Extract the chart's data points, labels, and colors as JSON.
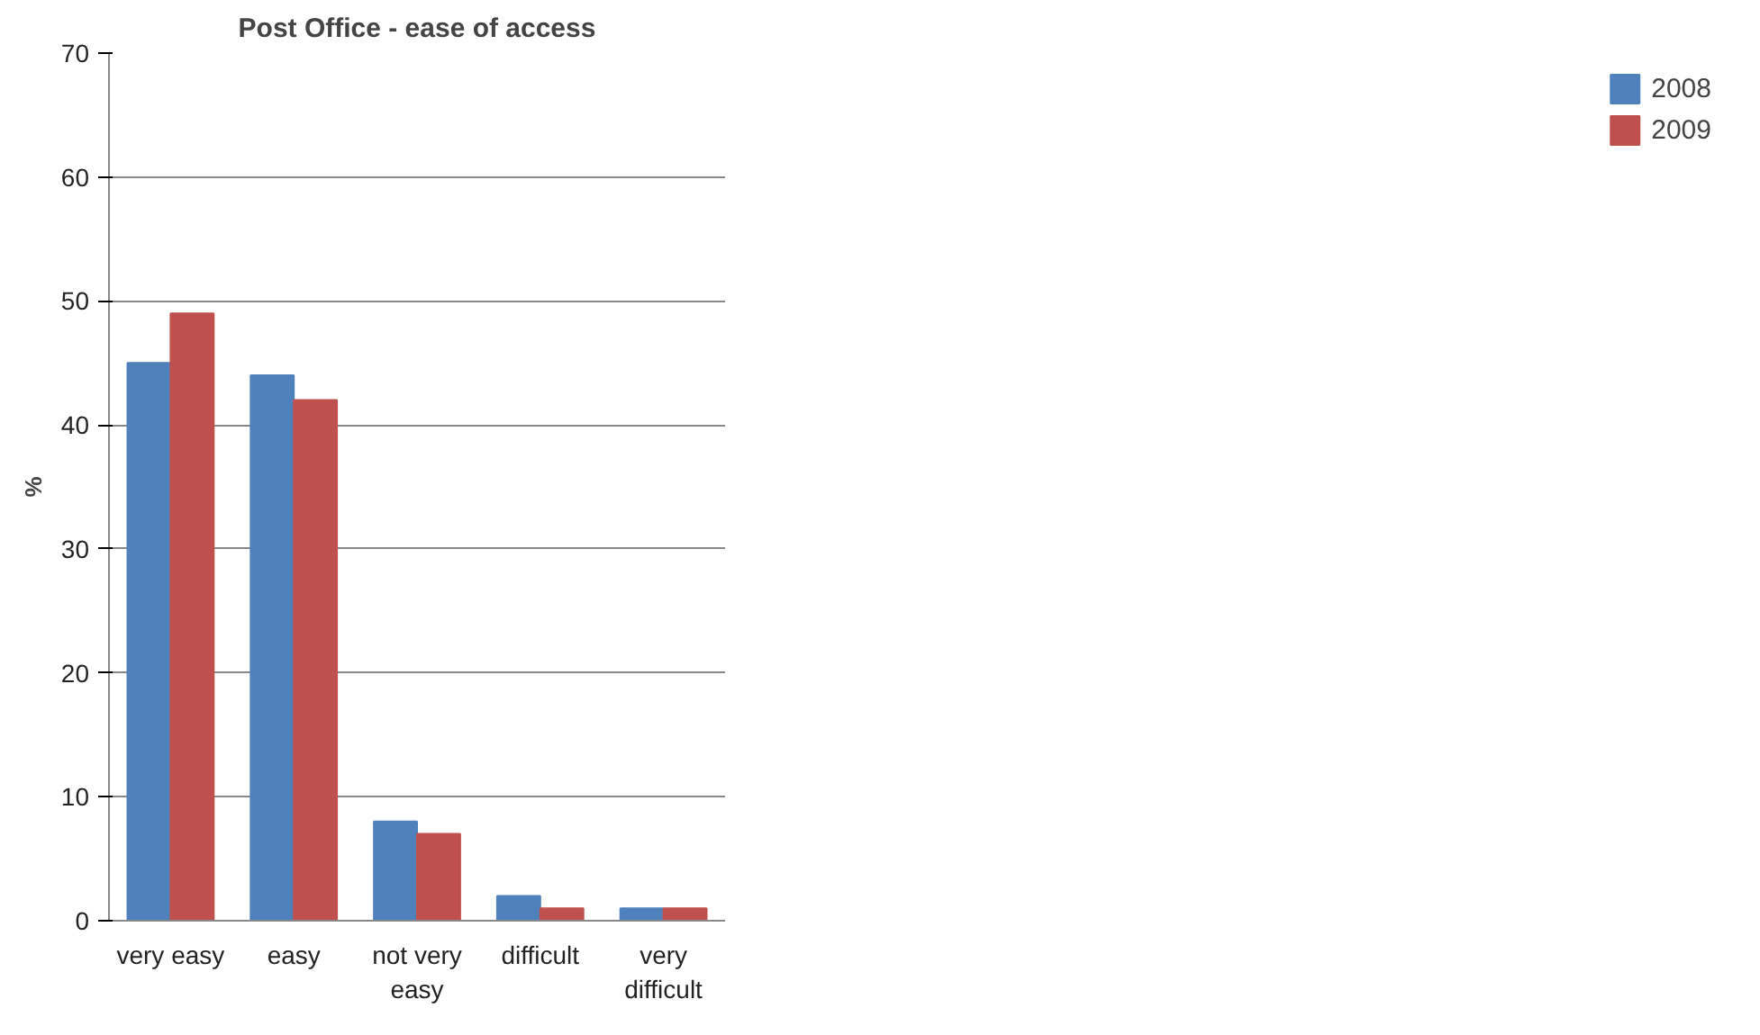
{
  "chart_data": {
    "type": "bar",
    "title": "Post Office - ease of access",
    "ylabel": "%",
    "categories": [
      "very easy",
      "easy",
      "not very\neasy",
      "difficult",
      "very\ndifficult"
    ],
    "series": [
      {
        "name": "2008",
        "color": "#4f81bd",
        "values": [
          45,
          44,
          8,
          2,
          1
        ]
      },
      {
        "name": "2009",
        "color": "#c0504d",
        "values": [
          49,
          42,
          7,
          1,
          1
        ]
      }
    ],
    "ylim": [
      0,
      70
    ],
    "yticks": [
      0,
      10,
      20,
      30,
      40,
      50,
      60,
      70
    ],
    "grid": "y",
    "legend": "right"
  }
}
